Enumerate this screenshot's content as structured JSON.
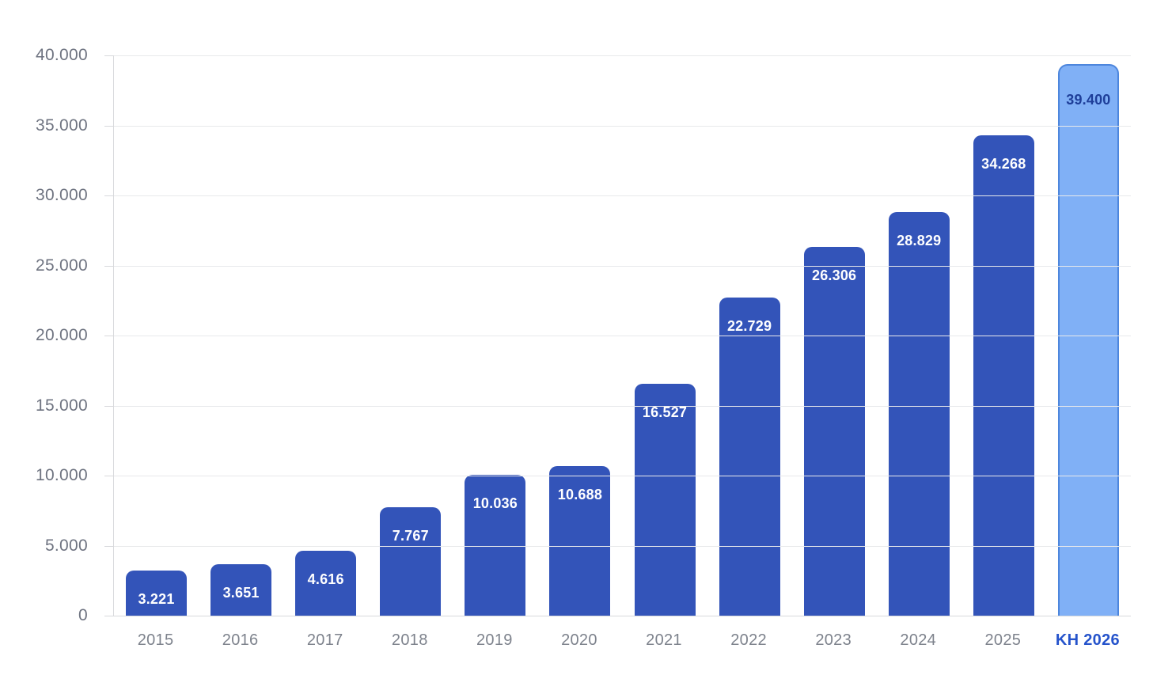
{
  "chart_data": {
    "type": "bar",
    "title": "",
    "xlabel": "",
    "ylabel": "",
    "categories": [
      "2015",
      "2016",
      "2017",
      "2018",
      "2019",
      "2020",
      "2021",
      "2022",
      "2023",
      "2024",
      "2025",
      "KH 2026"
    ],
    "values": [
      3221,
      3651,
      4616,
      7767,
      10036,
      10688,
      16527,
      22729,
      26306,
      28829,
      34268,
      39400
    ],
    "value_labels": [
      "3.221",
      "3.651",
      "4.616",
      "7.767",
      "10.036",
      "10.688",
      "16.527",
      "22.729",
      "26.306",
      "28.829",
      "34.268",
      "39.400"
    ],
    "bar_types": [
      "actual",
      "actual",
      "actual",
      "actual",
      "actual",
      "actual",
      "actual",
      "actual",
      "actual",
      "actual",
      "actual",
      "plan"
    ],
    "ylim": [
      0,
      40000
    ],
    "y_ticks": [
      0,
      5000,
      10000,
      15000,
      20000,
      25000,
      30000,
      35000,
      40000
    ],
    "y_tick_labels": [
      "0",
      "5.000",
      "10.000",
      "15.000",
      "20.000",
      "25.000",
      "30.000",
      "35.000",
      "40.000"
    ],
    "grid": "horizontal",
    "legend": "none",
    "colors": {
      "background": "#ffffff",
      "bar_fill": "#3354b9",
      "bar_label": "#ffffff",
      "plan_fill": "#80b0f6",
      "plan_border": "#4d86dd",
      "plan_label": "#1e3e99",
      "axis_label": "#6e7380",
      "x_label": "#7d828c",
      "plan_x_label": "#2553cb",
      "gridline": "#e8e9eb",
      "axis_line": "#d8d9dc"
    }
  }
}
